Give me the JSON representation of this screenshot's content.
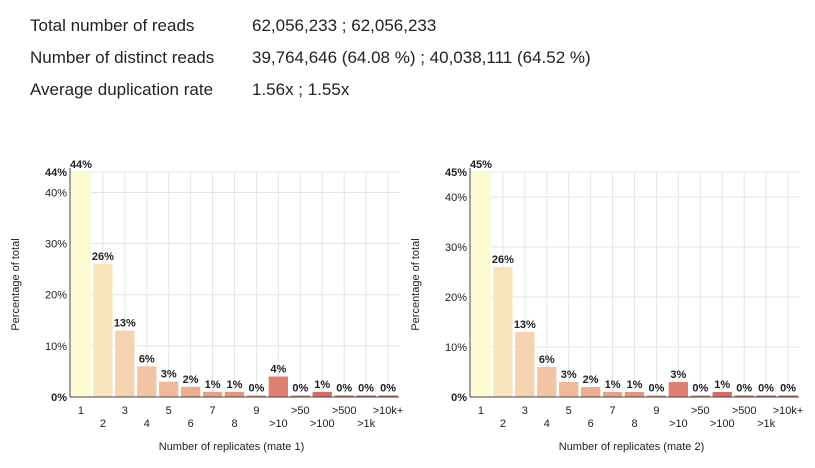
{
  "stats": [
    {
      "label": "Total number of reads",
      "value": "62,056,233 ; 62,056,233"
    },
    {
      "label": "Number of distinct reads",
      "value": "39,764,646 (64.08 %) ; 40,038,111 (64.52 %)"
    },
    {
      "label": "Average duplication rate",
      "value": "1.56x ; 1.55x"
    }
  ],
  "chart_data": [
    {
      "type": "bar",
      "xlabel": "Number of replicates (mate 1)",
      "ylabel": "Percentage of total",
      "categories": [
        "1",
        "2",
        "3",
        "4",
        "5",
        "6",
        "7",
        "8",
        "9",
        ">10",
        ">50",
        ">100",
        ">500",
        ">1k",
        ">10k+"
      ],
      "values": [
        44,
        26,
        13,
        6,
        3,
        2,
        1,
        1,
        0,
        4,
        0,
        1,
        0,
        0,
        0
      ],
      "data_labels": [
        "44%",
        "26%",
        "13%",
        "6%",
        "3%",
        "2%",
        "1%",
        "1%",
        "0%",
        "4%",
        "0%",
        "1%",
        "0%",
        "0%",
        "0%"
      ],
      "yticks": [
        "0%",
        "10%",
        "20%",
        "30%",
        "40%",
        "44%"
      ],
      "ylim": [
        0,
        44
      ],
      "grid": true
    },
    {
      "type": "bar",
      "xlabel": "Number of replicates (mate 2)",
      "ylabel": "Percentage of total",
      "categories": [
        "1",
        "2",
        "3",
        "4",
        "5",
        "6",
        "7",
        "8",
        "9",
        ">10",
        ">50",
        ">100",
        ">500",
        ">1k",
        ">10k+"
      ],
      "values": [
        45,
        26,
        13,
        6,
        3,
        2,
        1,
        1,
        0,
        3,
        0,
        1,
        0,
        0,
        0
      ],
      "data_labels": [
        "45%",
        "26%",
        "13%",
        "6%",
        "3%",
        "2%",
        "1%",
        "1%",
        "0%",
        "3%",
        "0%",
        "1%",
        "0%",
        "0%",
        "0%"
      ],
      "yticks": [
        "0%",
        "10%",
        "20%",
        "30%",
        "40%",
        "45%"
      ],
      "ylim": [
        0,
        45
      ],
      "grid": true
    }
  ],
  "colors": {
    "bars": [
      "#fbfad0",
      "#f9e4bc",
      "#f6d3b0",
      "#f3c5a4",
      "#f0b99a",
      "#ecad90",
      "#e9a087",
      "#e6957e",
      "#e38b76",
      "#e17f70",
      "#dd7469",
      "#dc6a64",
      "#d9625e",
      "#d85c5a",
      "#d65757"
    ],
    "grid": "#e5e5e5",
    "axis": "#444444"
  }
}
